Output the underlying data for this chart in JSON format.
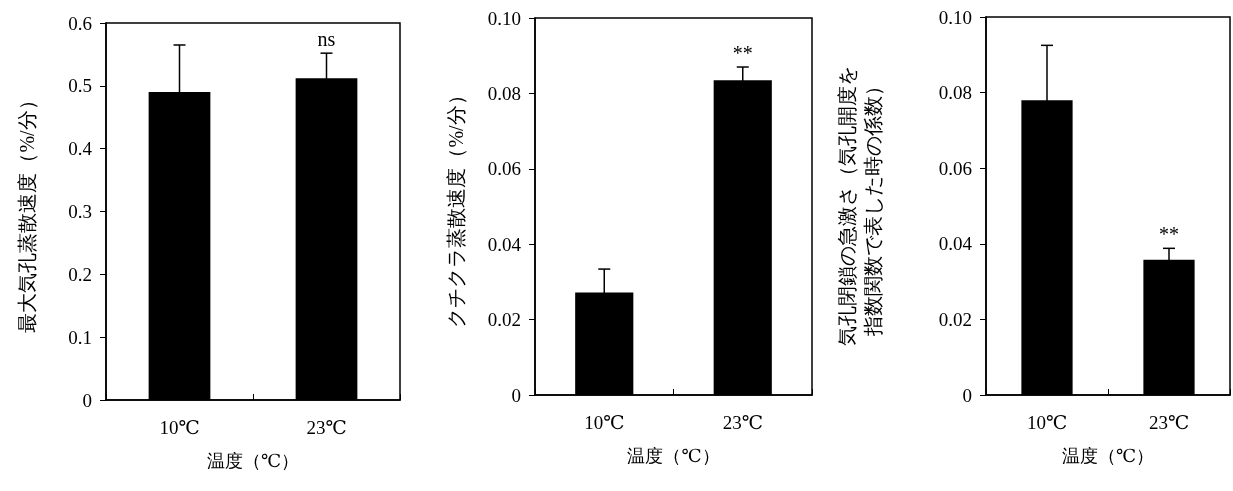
{
  "chart_data": [
    {
      "type": "bar",
      "categories": [
        "10℃",
        "23℃"
      ],
      "values": [
        0.49,
        0.512
      ],
      "errors": [
        0.075,
        0.04
      ],
      "color": "#000000",
      "xlabel": "温度（℃）",
      "ylabel": "最大気孔蒸散速度（%/分）",
      "ylim": [
        0,
        0.6
      ],
      "yticks": [
        0,
        0.1,
        0.2,
        0.3,
        0.4,
        0.5,
        0.6
      ],
      "grid": false,
      "annotations": [
        "ns"
      ]
    },
    {
      "type": "bar",
      "categories": [
        "10℃",
        "23℃"
      ],
      "values": [
        0.0272,
        0.0835
      ],
      "errors": [
        0.0062,
        0.0035
      ],
      "color": "#000000",
      "xlabel": "温度（℃）",
      "ylabel": "クチクラ蒸散速度（%/分）",
      "ylim": [
        0,
        0.1
      ],
      "yticks": [
        0,
        0.02,
        0.04,
        0.06,
        0.08,
        {
          "value": 0.1,
          "label": "0.10"
        }
      ],
      "grid": false,
      "annotations": [
        "**"
      ]
    },
    {
      "type": "bar",
      "categories": [
        "10℃",
        "23℃"
      ],
      "values": [
        0.078,
        0.0358
      ],
      "errors": [
        0.0145,
        0.003
      ],
      "color": "#000000",
      "xlabel": "温度（℃）",
      "ylabel": "気孔閉鎖の急激さ（気孔開度を指数関数で表した時の係数）",
      "ylim": [
        0,
        0.1
      ],
      "yticks": [
        0,
        0.02,
        0.04,
        0.06,
        0.08,
        {
          "value": 0.1,
          "label": "0.10"
        }
      ],
      "grid": false,
      "annotations": [
        "**"
      ]
    }
  ]
}
